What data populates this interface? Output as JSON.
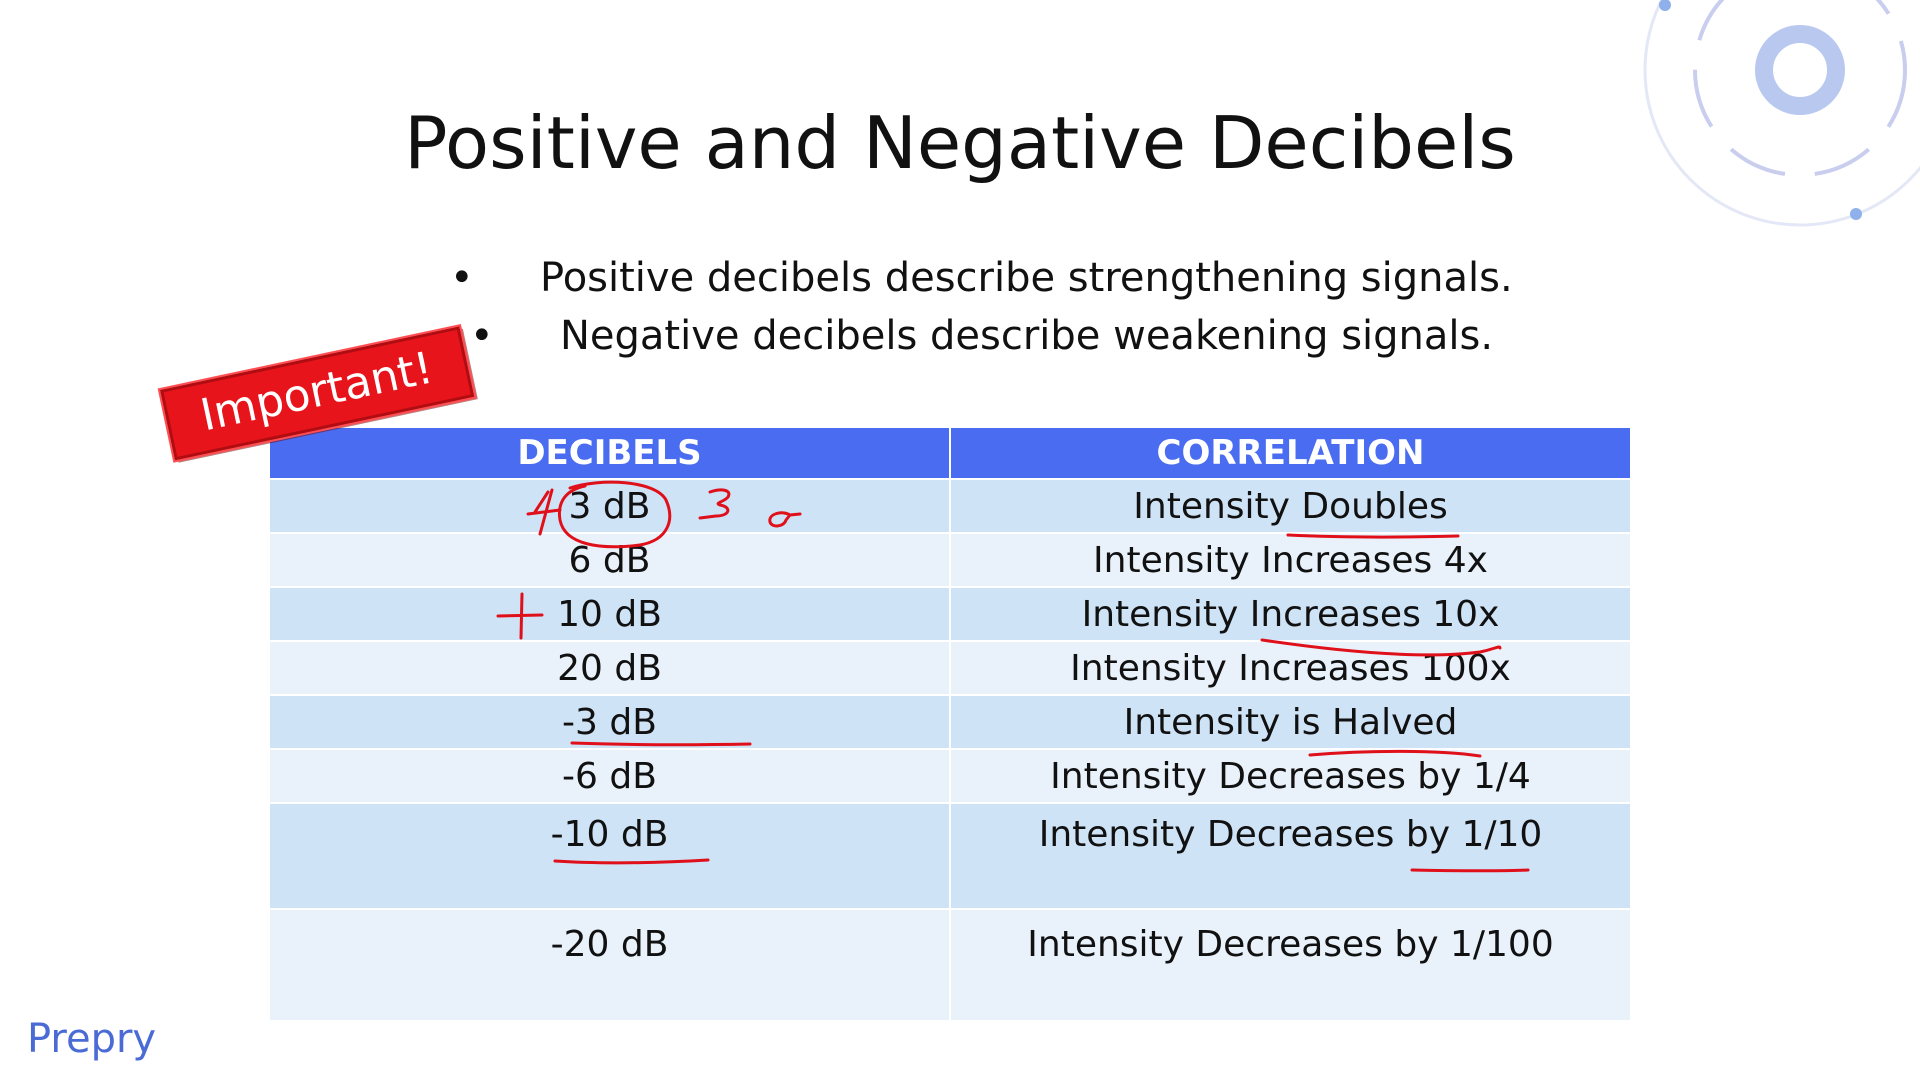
{
  "slide": {
    "title": "Positive and Negative Decibels",
    "bullets": [
      "Positive decibels describe strengthening signals.",
      "Negative decibels describe weakening signals."
    ],
    "bullet_symbol": "•",
    "stamp_text": "Important!",
    "brand": "Prepry"
  },
  "table": {
    "headers": [
      "DECIBELS",
      "CORRELATION"
    ],
    "rows": [
      {
        "decibels": "3 dB",
        "correlation": "Intensity Doubles"
      },
      {
        "decibels": "6 dB",
        "correlation": "Intensity Increases 4x"
      },
      {
        "decibels": "10 dB",
        "correlation": "Intensity Increases 10x"
      },
      {
        "decibels": "20 dB",
        "correlation": "Intensity Increases 100x"
      },
      {
        "decibels": "-3 dB",
        "correlation": "Intensity is Halved"
      },
      {
        "decibels": "-6 dB",
        "correlation": "Intensity Decreases by 1/4"
      },
      {
        "decibels": "-10 dB",
        "correlation": "Intensity Decreases by 1/10"
      },
      {
        "decibels": "-20 dB",
        "correlation": "Intensity Decreases by 1/100"
      }
    ]
  },
  "colors": {
    "header_bg": "#4a6cf0",
    "row_dark": "#cfe3f7",
    "row_light": "#e9f2fb",
    "stamp_red": "#e8141b",
    "ink_red": "#e0101a",
    "brand_blue": "#4a6ad6"
  }
}
